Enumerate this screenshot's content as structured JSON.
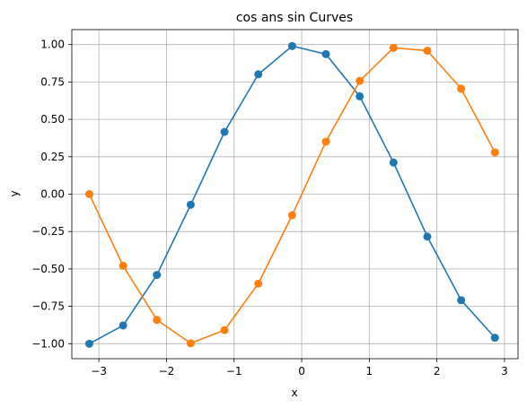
{
  "chart_data": {
    "type": "line",
    "title": "cos ans sin Curves",
    "xlabel": "x",
    "ylabel": "y",
    "xlim": [
      -3.4,
      3.2
    ],
    "ylim": [
      -1.1,
      1.1
    ],
    "xticks": [
      -3,
      -2,
      -1,
      0,
      1,
      2,
      3
    ],
    "xtick_labels": [
      "−3",
      "−2",
      "−1",
      "0",
      "1",
      "2",
      "3"
    ],
    "yticks": [
      -1.0,
      -0.75,
      -0.5,
      -0.25,
      0.0,
      0.25,
      0.5,
      0.75,
      1.0
    ],
    "ytick_labels": [
      "−1.00",
      "−0.75",
      "−0.50",
      "−0.25",
      "0.00",
      "0.25",
      "0.50",
      "0.75",
      "1.00"
    ],
    "grid": true,
    "x": [
      -3.1416,
      -2.6416,
      -2.1416,
      -1.6416,
      -1.1416,
      -0.6416,
      -0.1416,
      0.3584,
      0.8584,
      1.3584,
      1.8584,
      2.3584,
      2.8584
    ],
    "series": [
      {
        "color": "#1f77b4",
        "values": [
          -1.0,
          -0.878,
          -0.54,
          -0.071,
          0.416,
          0.801,
          0.99,
          0.936,
          0.654,
          0.211,
          -0.284,
          -0.709,
          -0.96
        ]
      },
      {
        "color": "#ff7f0e",
        "values": [
          0.0,
          -0.479,
          -0.841,
          -0.997,
          -0.909,
          -0.598,
          -0.141,
          0.351,
          0.757,
          0.978,
          0.959,
          0.705,
          0.279
        ]
      }
    ]
  }
}
